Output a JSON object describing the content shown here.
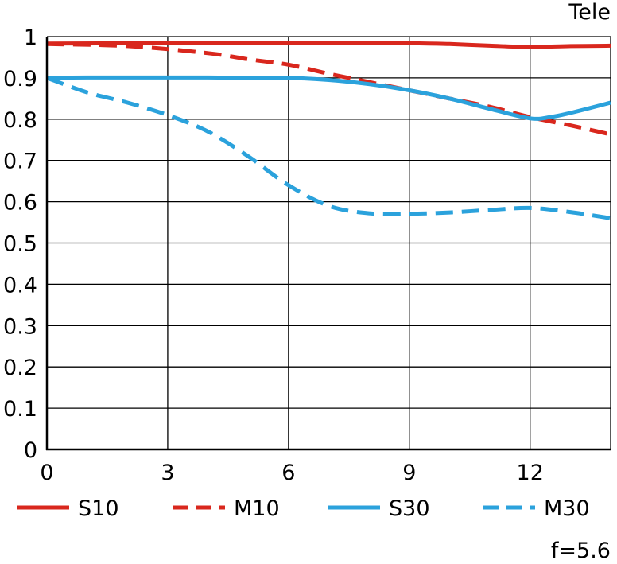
{
  "chart_data": {
    "type": "line",
    "title": "Tele",
    "footnote": "f=5.6",
    "xlabel": "",
    "ylabel": "",
    "xlim": [
      0,
      14
    ],
    "ylim": [
      0,
      1
    ],
    "xticks": [
      0,
      3,
      6,
      9,
      12
    ],
    "yticks": [
      0,
      0.1,
      0.2,
      0.3,
      0.4,
      0.5,
      0.6,
      0.7,
      0.8,
      0.9,
      1
    ],
    "ytick_labels": [
      "0",
      "0.1",
      "0.2",
      "0.3",
      "0.4",
      "0.5",
      "0.6",
      "0.7",
      "0.8",
      "0.9",
      "1"
    ],
    "grid": true,
    "legend_position": "bottom",
    "series": [
      {
        "name": "S10",
        "color": "#d9271d",
        "dash": "solid",
        "x": [
          0,
          2,
          4,
          6,
          8,
          9,
          10,
          11,
          12,
          13,
          14
        ],
        "y": [
          0.983,
          0.984,
          0.985,
          0.985,
          0.985,
          0.984,
          0.982,
          0.978,
          0.975,
          0.977,
          0.978
        ]
      },
      {
        "name": "M10",
        "color": "#d9271d",
        "dash": "dashed",
        "x": [
          0,
          2,
          4,
          5,
          6,
          7,
          8,
          9,
          10,
          11,
          12,
          13,
          14
        ],
        "y": [
          0.982,
          0.977,
          0.96,
          0.945,
          0.932,
          0.91,
          0.89,
          0.87,
          0.85,
          0.83,
          0.805,
          0.785,
          0.763
        ]
      },
      {
        "name": "S30",
        "color": "#2ba2dc",
        "dash": "solid",
        "x": [
          0,
          1,
          2,
          3,
          4,
          5,
          6,
          7,
          8,
          9,
          10,
          11,
          12,
          12.5,
          13,
          14
        ],
        "y": [
          0.9,
          0.901,
          0.901,
          0.901,
          0.901,
          0.9,
          0.9,
          0.895,
          0.885,
          0.87,
          0.85,
          0.825,
          0.802,
          0.805,
          0.815,
          0.84
        ]
      },
      {
        "name": "M30",
        "color": "#2ba2dc",
        "dash": "dashed",
        "x": [
          0,
          1,
          2,
          3,
          4,
          5,
          6,
          7,
          8,
          9,
          10,
          11,
          12,
          13,
          14
        ],
        "y": [
          0.9,
          0.865,
          0.84,
          0.81,
          0.77,
          0.71,
          0.64,
          0.59,
          0.572,
          0.571,
          0.574,
          0.58,
          0.585,
          0.575,
          0.56
        ]
      }
    ]
  }
}
